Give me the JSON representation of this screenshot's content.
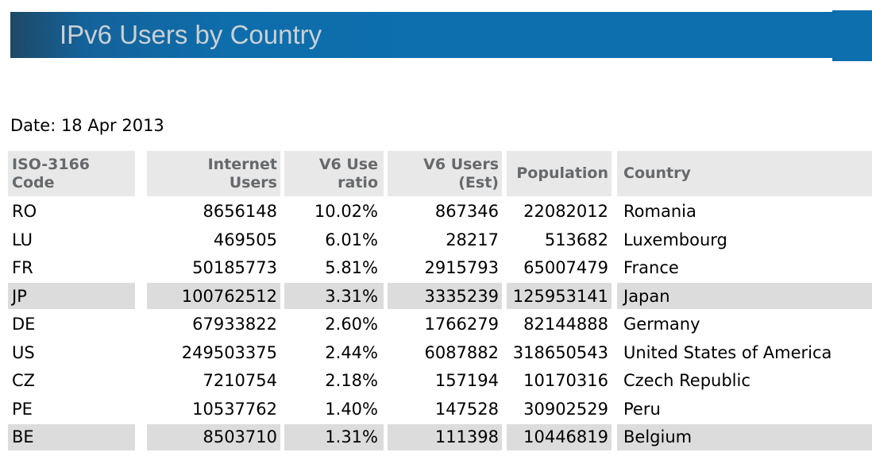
{
  "banner": {
    "title": "IPv6 Users by Country"
  },
  "date_line": "Date: 18 Apr 2013",
  "table": {
    "columns": [
      {
        "id": "code",
        "label": "ISO-3166\nCode",
        "align": "left"
      },
      {
        "id": "internet_users",
        "label": "Internet\nUsers",
        "align": "right"
      },
      {
        "id": "v6_ratio",
        "label": "V6 Use\nratio",
        "align": "right"
      },
      {
        "id": "v6_users",
        "label": "V6 Users\n(Est)",
        "align": "right"
      },
      {
        "id": "population",
        "label": "Population",
        "align": "right"
      },
      {
        "id": "country",
        "label": "Country",
        "align": "left"
      }
    ],
    "rows": [
      {
        "code": "RO",
        "internet_users": "8656148",
        "v6_ratio": "10.02%",
        "v6_users": "867346",
        "population": "22082012",
        "country": "Romania",
        "highlighted": false
      },
      {
        "code": "LU",
        "internet_users": "469505",
        "v6_ratio": "6.01%",
        "v6_users": "28217",
        "population": "513682",
        "country": "Luxembourg",
        "highlighted": false
      },
      {
        "code": "FR",
        "internet_users": "50185773",
        "v6_ratio": "5.81%",
        "v6_users": "2915793",
        "population": "65007479",
        "country": "France",
        "highlighted": false
      },
      {
        "code": "JP",
        "internet_users": "100762512",
        "v6_ratio": "3.31%",
        "v6_users": "3335239",
        "population": "125953141",
        "country": "Japan",
        "highlighted": true
      },
      {
        "code": "DE",
        "internet_users": "67933822",
        "v6_ratio": "2.60%",
        "v6_users": "1766279",
        "population": "82144888",
        "country": "Germany",
        "highlighted": false
      },
      {
        "code": "US",
        "internet_users": "249503375",
        "v6_ratio": "2.44%",
        "v6_users": "6087882",
        "population": "318650543",
        "country": "United States of America",
        "highlighted": false
      },
      {
        "code": "CZ",
        "internet_users": "7210754",
        "v6_ratio": "2.18%",
        "v6_users": "157194",
        "population": "10170316",
        "country": "Czech Republic",
        "highlighted": false
      },
      {
        "code": "PE",
        "internet_users": "10537762",
        "v6_ratio": "1.40%",
        "v6_users": "147528",
        "population": "30902529",
        "country": "Peru",
        "highlighted": false
      },
      {
        "code": "BE",
        "internet_users": "8503710",
        "v6_ratio": "1.31%",
        "v6_users": "111398",
        "population": "10446819",
        "country": "Belgium",
        "highlighted": true
      }
    ]
  },
  "colors": {
    "banner_blue": "#0d6fae",
    "banner_dark": "#1e4966",
    "title_text": "#cbd0d4",
    "header_bg": "#e8e8e8",
    "header_text": "#66696b",
    "highlight_bg": "#dcdcdc"
  }
}
